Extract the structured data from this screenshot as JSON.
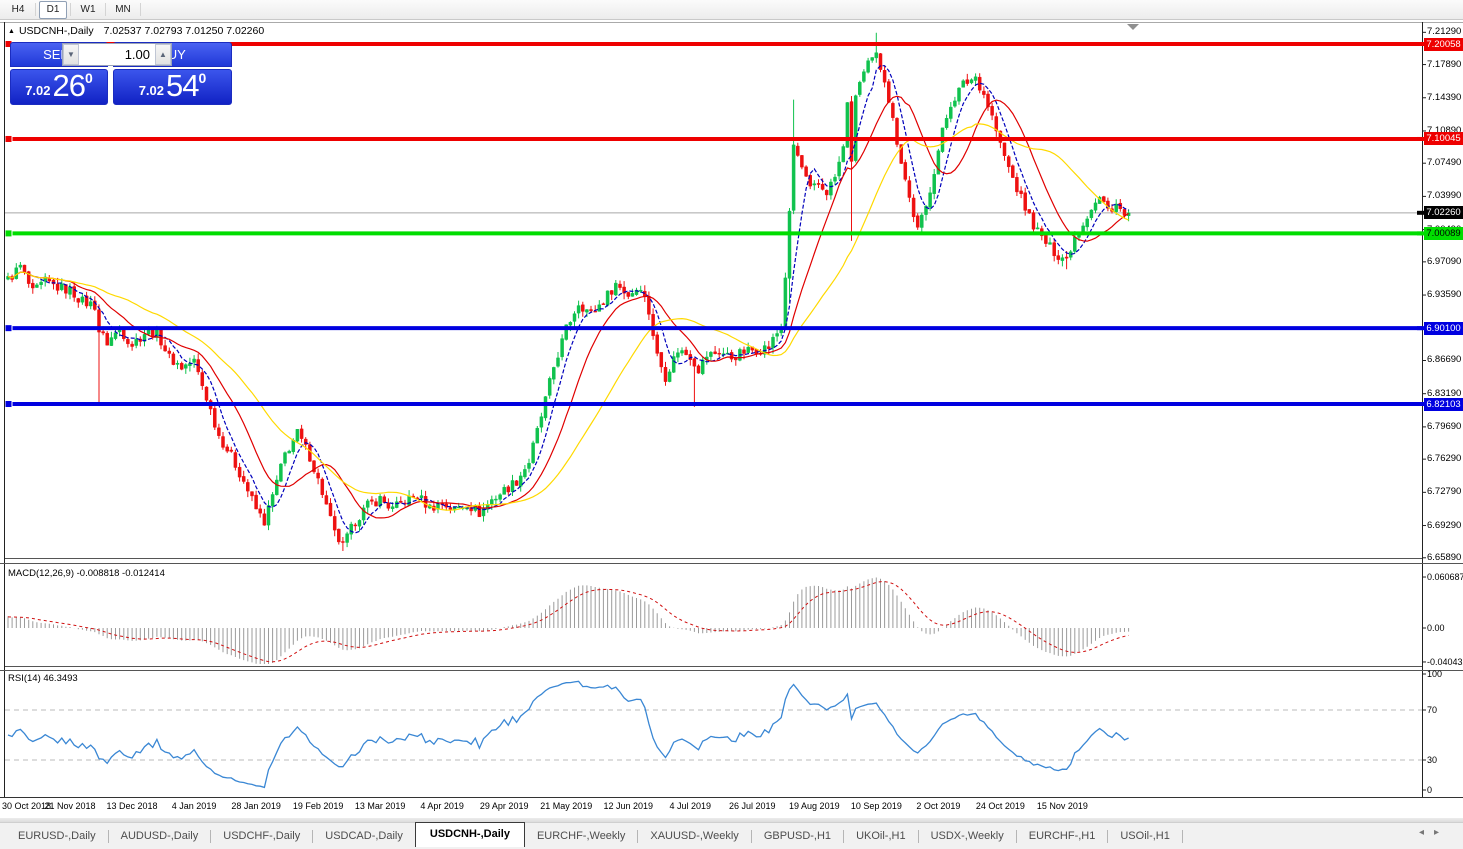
{
  "toolbar": {
    "buttons": [
      {
        "label": "H4",
        "active": false
      },
      {
        "label": "D1",
        "active": true
      },
      {
        "label": "W1",
        "active": false
      },
      {
        "label": "MN",
        "active": false
      }
    ]
  },
  "window": {
    "collapse_icon": "▲",
    "title_symbol": "USDCNH-,Daily",
    "title_ohlc": "7.02537 7.02793 7.01250 7.02260"
  },
  "trade_panel": {
    "sell_label": "SELL",
    "buy_label": "BUY",
    "volume": "1.00",
    "down_icon": "▼",
    "up_icon": "▲",
    "sell_price_small": "7.02",
    "sell_price_big": "26",
    "sell_price_sup": "0",
    "buy_price_small": "7.02",
    "buy_price_big": "54",
    "buy_price_sup": "0"
  },
  "tabs": {
    "items": [
      "EURUSD-,Daily",
      "AUDUSD-,Daily",
      "USDCHF-,Daily",
      "USDCAD-,Daily",
      "USDCNH-,Daily",
      "EURCHF-,Weekly",
      "XAUUSD-,Weekly",
      "GBPUSD-,H1",
      "UKOil-,H1",
      "USDX-,Weekly",
      "EURCHF-,H1",
      "USOil-,H1"
    ],
    "active_index": 4,
    "scroll_left_icon": "◂",
    "scroll_right_icon": "▸"
  },
  "chart_data": {
    "type": "candlestick",
    "symbol": "USDCNH",
    "timeframe": "Daily",
    "displayed_ohlc": {
      "open": "7.02537",
      "high": "7.02793",
      "low": "7.01250",
      "close": "7.02260"
    },
    "colors": {
      "bull": "#10c24e",
      "bear": "#ee1111",
      "ma_fast": "#0000bb",
      "ma_mid": "#e00000",
      "ma_slow": "#ffd900",
      "hline_red": "#ee0000",
      "hline_green": "#00dd00",
      "hline_blue": "#0000e0",
      "current_line": "#a8a8a8",
      "macd_bar": "#9b9b9b",
      "macd_signal": "#d01010",
      "rsi_line": "#3a87d4",
      "rsi_level": "#bbbbbb"
    },
    "price_axis_ticks": [
      {
        "label": "7.21290",
        "price": 7.2129
      },
      {
        "label": "7.17890",
        "price": 7.1789
      },
      {
        "label": "7.14390",
        "price": 7.1439
      },
      {
        "label": "7.10890",
        "price": 7.1089
      },
      {
        "label": "7.07490",
        "price": 7.0749
      },
      {
        "label": "7.03990",
        "price": 7.0399
      },
      {
        "label": "7.00490",
        "price": 7.0049
      },
      {
        "label": "6.97090",
        "price": 6.9709
      },
      {
        "label": "6.93590",
        "price": 6.9359
      },
      {
        "label": "6.90090",
        "price": 6.9009
      },
      {
        "label": "6.86690",
        "price": 6.8669
      },
      {
        "label": "6.83190",
        "price": 6.8319
      },
      {
        "label": "6.79690",
        "price": 6.7969
      },
      {
        "label": "6.76290",
        "price": 6.7629
      },
      {
        "label": "6.72790",
        "price": 6.7279
      },
      {
        "label": "6.69290",
        "price": 6.6929
      },
      {
        "label": "6.65890",
        "price": 6.6589
      }
    ],
    "hlines": [
      {
        "label": "7.20058",
        "price": 7.20058,
        "color": "#ee0000",
        "badge_text": "#ffffff"
      },
      {
        "label": "7.10045",
        "price": 7.10045,
        "color": "#ee0000",
        "badge_text": "#ffffff"
      },
      {
        "label": "7.00089",
        "price": 7.00089,
        "color": "#00dd00",
        "badge_text": "#000000"
      },
      {
        "label": "6.90100",
        "price": 6.901,
        "color": "#0000e0",
        "badge_text": "#ffffff"
      },
      {
        "label": "6.82103",
        "price": 6.82103,
        "color": "#0000e0",
        "badge_text": "#ffffff"
      }
    ],
    "current_price": {
      "label": "7.02260",
      "price": 7.0226,
      "badge_bg": "#000000",
      "badge_text": "#ffffff"
    },
    "date_labels": [
      "30 Oct 2018",
      "21 Nov 2018",
      "13 Dec 2018",
      "4 Jan 2019",
      "28 Jan 2019",
      "19 Feb 2019",
      "13 Mar 2019",
      "4 Apr 2019",
      "29 Apr 2019",
      "21 May 2019",
      "12 Jun 2019",
      "4 Jul 2019",
      "26 Jul 2019",
      "19 Aug 2019",
      "10 Sep 2019",
      "2 Oct 2019",
      "24 Oct 2019",
      "15 Nov 2019"
    ],
    "bars_per_label": 15,
    "anchors": [
      [
        0,
        6.952
      ],
      [
        3,
        6.966
      ],
      [
        6,
        6.938
      ],
      [
        9,
        6.95
      ],
      [
        12,
        6.944
      ],
      [
        15,
        6.941
      ],
      [
        18,
        6.929
      ],
      [
        21,
        6.925
      ],
      [
        22,
        6.898
      ],
      [
        24,
        6.886
      ],
      [
        27,
        6.9
      ],
      [
        30,
        6.884
      ],
      [
        33,
        6.896
      ],
      [
        36,
        6.897
      ],
      [
        39,
        6.87
      ],
      [
        42,
        6.86
      ],
      [
        45,
        6.866
      ],
      [
        48,
        6.828
      ],
      [
        51,
        6.788
      ],
      [
        54,
        6.766
      ],
      [
        57,
        6.74
      ],
      [
        60,
        6.71
      ],
      [
        62,
        6.697
      ],
      [
        64,
        6.724
      ],
      [
        67,
        6.768
      ],
      [
        70,
        6.79
      ],
      [
        73,
        6.766
      ],
      [
        76,
        6.728
      ],
      [
        79,
        6.684
      ],
      [
        81,
        6.671
      ],
      [
        84,
        6.698
      ],
      [
        87,
        6.714
      ],
      [
        90,
        6.721
      ],
      [
        93,
        6.71
      ],
      [
        96,
        6.719
      ],
      [
        99,
        6.724
      ],
      [
        102,
        6.712
      ],
      [
        105,
        6.716
      ],
      [
        108,
        6.71
      ],
      [
        111,
        6.716
      ],
      [
        114,
        6.706
      ],
      [
        117,
        6.72
      ],
      [
        120,
        6.73
      ],
      [
        123,
        6.74
      ],
      [
        126,
        6.76
      ],
      [
        129,
        6.808
      ],
      [
        132,
        6.86
      ],
      [
        135,
        6.9
      ],
      [
        138,
        6.928
      ],
      [
        141,
        6.916
      ],
      [
        144,
        6.93
      ],
      [
        147,
        6.948
      ],
      [
        150,
        6.936
      ],
      [
        153,
        6.946
      ],
      [
        155,
        6.918
      ],
      [
        157,
        6.872
      ],
      [
        159,
        6.85
      ],
      [
        162,
        6.878
      ],
      [
        165,
        6.872
      ],
      [
        167,
        6.858
      ],
      [
        169,
        6.872
      ],
      [
        172,
        6.876
      ],
      [
        175,
        6.87
      ],
      [
        178,
        6.876
      ],
      [
        181,
        6.879
      ],
      [
        184,
        6.881
      ],
      [
        187,
        6.903
      ],
      [
        188,
        6.956
      ],
      [
        189,
        7.02
      ],
      [
        190,
        7.094
      ],
      [
        192,
        7.07
      ],
      [
        194,
        7.046
      ],
      [
        196,
        7.052
      ],
      [
        198,
        7.045
      ],
      [
        200,
        7.06
      ],
      [
        202,
        7.09
      ],
      [
        203,
        7.142
      ],
      [
        204,
        7.072
      ],
      [
        205,
        7.148
      ],
      [
        206,
        7.16
      ],
      [
        208,
        7.178
      ],
      [
        210,
        7.188
      ],
      [
        212,
        7.165
      ],
      [
        214,
        7.12
      ],
      [
        216,
        7.078
      ],
      [
        218,
        7.038
      ],
      [
        220,
        7.004
      ],
      [
        222,
        7.028
      ],
      [
        224,
        7.068
      ],
      [
        226,
        7.108
      ],
      [
        228,
        7.138
      ],
      [
        231,
        7.158
      ],
      [
        234,
        7.166
      ],
      [
        236,
        7.148
      ],
      [
        238,
        7.124
      ],
      [
        240,
        7.094
      ],
      [
        242,
        7.07
      ],
      [
        244,
        7.048
      ],
      [
        246,
        7.028
      ],
      [
        248,
        7.01
      ],
      [
        250,
        6.996
      ],
      [
        252,
        6.986
      ],
      [
        254,
        6.978
      ],
      [
        256,
        6.974
      ],
      [
        258,
        6.998
      ],
      [
        260,
        7.012
      ],
      [
        262,
        7.028
      ],
      [
        264,
        7.038
      ],
      [
        266,
        7.026
      ],
      [
        268,
        7.032
      ],
      [
        270,
        7.018
      ],
      [
        271,
        7.0226
      ]
    ],
    "special_wicks": [
      {
        "i": 22,
        "low": 6.821
      },
      {
        "i": 81,
        "low": 6.666
      },
      {
        "i": 166,
        "low": 6.818
      },
      {
        "i": 189,
        "low": 6.928
      },
      {
        "i": 190,
        "high": 7.142
      },
      {
        "i": 204,
        "low": 6.993
      },
      {
        "i": 210,
        "high": 7.2125
      },
      {
        "i": 256,
        "low": 6.963
      }
    ],
    "moving_averages": [
      {
        "period": 6,
        "color": "#0000bb",
        "dashed": true
      },
      {
        "period": 14,
        "color": "#e00000",
        "dashed": false
      },
      {
        "period": 30,
        "color": "#ffd900",
        "dashed": false
      }
    ],
    "macd": {
      "label": "MACD(12,26,9) -0.008818 -0.012414",
      "fast": 12,
      "slow": 26,
      "signal": 9,
      "axis": [
        {
          "label": "0.060687",
          "value": 0.060687
        },
        {
          "label": "0.00",
          "value": 0
        },
        {
          "label": "-0.040432",
          "value": -0.040432
        }
      ]
    },
    "rsi": {
      "label": "RSI(14) 46.3493",
      "period": 14,
      "axis": [
        {
          "label": "100",
          "value": 100
        },
        {
          "label": "70",
          "value": 70
        },
        {
          "label": "30",
          "value": 30
        },
        {
          "label": "0",
          "value": 0
        }
      ],
      "levels": [
        70,
        30
      ]
    }
  }
}
